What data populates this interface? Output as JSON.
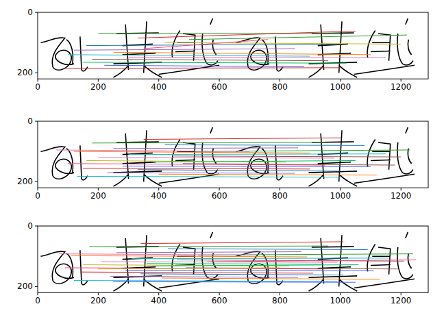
{
  "chart_data": [
    {
      "type": "image",
      "xlim": [
        0,
        1290
      ],
      "ylim": [
        220,
        0
      ],
      "xticks": [
        0,
        200,
        400,
        600,
        800,
        1000,
        1200
      ],
      "yticks": [
        0,
        200
      ],
      "matches": [
        [
          200,
          70,
          1000,
          70
        ],
        [
          330,
          85,
          1050,
          62
        ],
        [
          160,
          110,
          980,
          105
        ],
        [
          120,
          125,
          850,
          120
        ],
        [
          250,
          132,
          1100,
          140
        ],
        [
          100,
          140,
          900,
          145
        ],
        [
          300,
          148,
          1150,
          150
        ],
        [
          180,
          155,
          960,
          160
        ],
        [
          420,
          100,
          1200,
          105
        ],
        [
          150,
          165,
          1020,
          168
        ],
        [
          350,
          120,
          760,
          90
        ],
        [
          220,
          175,
          880,
          180
        ],
        [
          500,
          90,
          1220,
          75
        ],
        [
          90,
          185,
          1000,
          183
        ]
      ]
    },
    {
      "type": "image",
      "xlim": [
        0,
        1290
      ],
      "ylim": [
        220,
        0
      ],
      "xticks": [
        0,
        200,
        400,
        600,
        800,
        1000,
        1200
      ],
      "yticks": [
        0,
        200
      ],
      "matches": [
        [
          180,
          72,
          950,
          70
        ],
        [
          350,
          60,
          1000,
          55
        ],
        [
          420,
          78,
          1080,
          80
        ],
        [
          250,
          90,
          860,
          88
        ],
        [
          120,
          100,
          900,
          105
        ],
        [
          300,
          110,
          1150,
          108
        ],
        [
          200,
          120,
          980,
          122
        ],
        [
          450,
          115,
          1200,
          118
        ],
        [
          160,
          130,
          820,
          135
        ],
        [
          380,
          135,
          1050,
          130
        ],
        [
          100,
          140,
          950,
          145
        ],
        [
          280,
          148,
          1100,
          150
        ],
        [
          520,
          100,
          1230,
          95
        ],
        [
          150,
          155,
          900,
          158
        ],
        [
          330,
          160,
          1000,
          165
        ],
        [
          230,
          170,
          850,
          172
        ],
        [
          400,
          175,
          1120,
          178
        ],
        [
          130,
          182,
          1000,
          185
        ],
        [
          60,
          95,
          700,
          100
        ],
        [
          480,
          140,
          1180,
          145
        ]
      ]
    },
    {
      "type": "image",
      "xlim": [
        0,
        1290
      ],
      "ylim": [
        220,
        0
      ],
      "xticks": [
        0,
        200,
        400,
        600,
        800,
        1000,
        1200
      ],
      "yticks": [
        0,
        200
      ],
      "matches": [
        [
          170,
          68,
          960,
          66
        ],
        [
          340,
          58,
          1010,
          52
        ],
        [
          430,
          75,
          1090,
          78
        ],
        [
          260,
          88,
          870,
          85
        ],
        [
          110,
          98,
          890,
          102
        ],
        [
          310,
          108,
          1160,
          106
        ],
        [
          210,
          118,
          990,
          120
        ],
        [
          460,
          112,
          1210,
          116
        ],
        [
          150,
          128,
          830,
          132
        ],
        [
          390,
          132,
          1060,
          128
        ],
        [
          90,
          138,
          940,
          142
        ],
        [
          290,
          146,
          1110,
          148
        ],
        [
          530,
          96,
          1240,
          92
        ],
        [
          140,
          152,
          910,
          156
        ],
        [
          340,
          158,
          1010,
          162
        ],
        [
          240,
          166,
          860,
          170
        ],
        [
          410,
          172,
          1130,
          176
        ],
        [
          120,
          180,
          990,
          183
        ],
        [
          70,
          92,
          720,
          96
        ],
        [
          490,
          138,
          1190,
          142
        ],
        [
          200,
          142,
          800,
          138
        ],
        [
          360,
          124,
          940,
          126
        ],
        [
          560,
          118,
          1250,
          112
        ],
        [
          250,
          184,
          1050,
          186
        ]
      ]
    }
  ]
}
